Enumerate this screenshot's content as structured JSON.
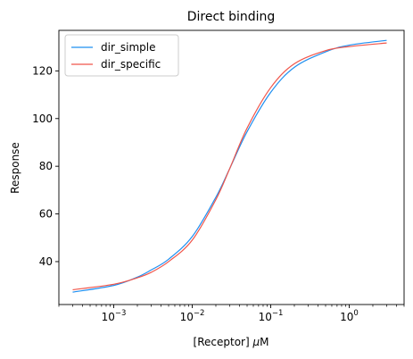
{
  "chart_data": {
    "type": "line",
    "title": "Direct binding",
    "xlabel": "[Receptor] μM",
    "ylabel": "Response",
    "xscale": "log",
    "xlim": [
      0.0002,
      5.0
    ],
    "ylim": [
      22,
      137
    ],
    "yticks": [
      40,
      60,
      80,
      100,
      120
    ],
    "xticks": [
      {
        "value": 0.001,
        "base": "10",
        "exp": "−3"
      },
      {
        "value": 0.01,
        "base": "10",
        "exp": "−2"
      },
      {
        "value": 0.1,
        "base": "10",
        "exp": "−1"
      },
      {
        "value": 1,
        "base": "10",
        "exp": "0"
      }
    ],
    "grid": false,
    "legend_position": "upper-left",
    "series": [
      {
        "name": "dir_simple",
        "color": "#1f8ff0",
        "points": [
          [
            0.0003,
            27.2
          ],
          [
            0.001,
            30.0
          ],
          [
            0.002,
            33.5
          ],
          [
            0.003,
            36.5
          ],
          [
            0.005,
            41.0
          ],
          [
            0.01,
            50.5
          ],
          [
            0.02,
            67.0
          ],
          [
            0.03,
            79.0
          ],
          [
            0.05,
            94.5
          ],
          [
            0.1,
            111.0
          ],
          [
            0.2,
            121.5
          ],
          [
            0.5,
            128.0
          ],
          [
            1.0,
            130.8
          ],
          [
            3.0,
            132.8
          ]
        ]
      },
      {
        "name": "dir_specific",
        "color": "#f0554a",
        "points": [
          [
            0.0003,
            28.2
          ],
          [
            0.001,
            30.5
          ],
          [
            0.002,
            33.2
          ],
          [
            0.003,
            35.5
          ],
          [
            0.005,
            40.0
          ],
          [
            0.01,
            49.0
          ],
          [
            0.02,
            66.0
          ],
          [
            0.03,
            79.0
          ],
          [
            0.05,
            96.0
          ],
          [
            0.1,
            113.0
          ],
          [
            0.2,
            123.0
          ],
          [
            0.5,
            128.5
          ],
          [
            1.0,
            130.2
          ],
          [
            3.0,
            131.7
          ]
        ]
      }
    ]
  }
}
